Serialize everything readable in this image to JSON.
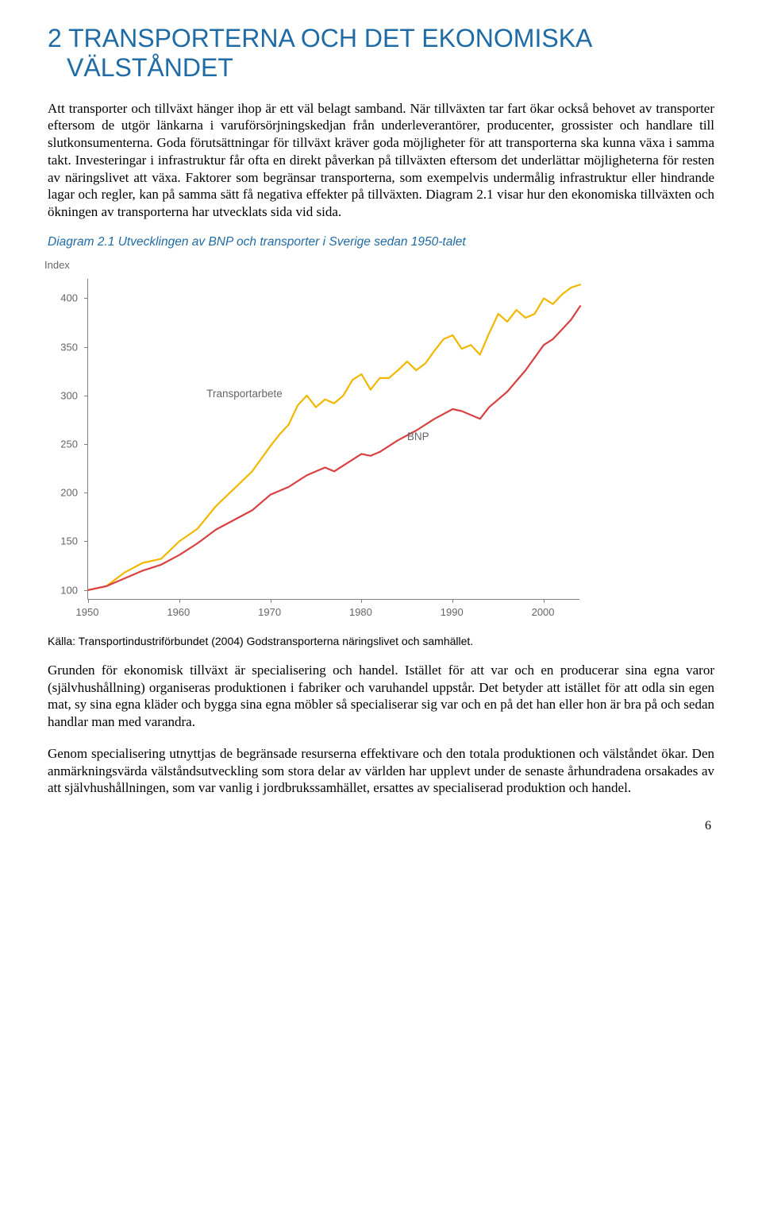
{
  "heading": "2 TRANSPORTERNA OCH DET EKONOMISKA VÄLSTÅNDET",
  "para1": "Att transporter och tillväxt hänger ihop är ett väl belagt samband. När tillväxten tar fart ökar också behovet av transporter eftersom de utgör länkarna i varuförsörjningskedjan från underleverantörer, producenter, grossister och handlare till slutkonsumenterna. Goda förutsättningar för tillväxt kräver goda möjligheter för att transporterna ska kunna växa i samma takt. Investeringar i infrastruktur får ofta en direkt påverkan på tillväxten eftersom det underlättar möjligheterna för resten av näringslivet att växa. Faktorer som begränsar transporterna, som exempelvis undermålig infrastruktur eller hindrande lagar och regler, kan på samma sätt få negativa effekter på tillväxten. Diagram 2.1 visar hur den ekonomiska tillväxten och ökningen av transporterna har utvecklats sida vid sida.",
  "caption": "Diagram 2.1 Utvecklingen av BNP och transporter i Sverige sedan 1950-talet",
  "source": "Källa: Transportindustriförbundet (2004) Godstransporterna näringslivet och samhället.",
  "para2": "Grunden för ekonomisk tillväxt är specialisering och handel. Istället för att var och en producerar sina egna varor (självhushållning) organiseras produktionen i fabriker och varuhandel uppstår. Det betyder att istället för att odla sin egen mat, sy sina egna kläder och bygga sina egna möbler så specialiserar sig var och en på det han eller hon är bra på och sedan handlar man med varandra.",
  "para3": "Genom specialisering utnyttjas de begränsade resurserna effektivare och den totala produktionen och välståndet ökar. Den anmärkningsvärda välståndsutveckling som stora delar av världen har upplevt under de senaste århundradena orsakades av att självhushållningen, som var vanlig i jordbrukssamhället, ersattes av specialiserad produktion och handel.",
  "page_number": "6",
  "chart": {
    "type": "line",
    "y_axis_label": "Index",
    "axis_color": "#808080",
    "tick_font_color": "#666666",
    "tick_fontsize": 13,
    "background_color": "#ffffff",
    "xlim": [
      1950,
      2004
    ],
    "ylim": [
      90,
      420
    ],
    "yticks": [
      100,
      150,
      200,
      250,
      300,
      350,
      400
    ],
    "xticks": [
      1950,
      1960,
      1970,
      1980,
      1990,
      2000
    ],
    "series": [
      {
        "name": "Transportarbete",
        "label_text": "Transportarbete",
        "color": "#f2b700",
        "line_width": 2.2,
        "label_pos": {
          "x": 1963,
          "y": 308
        },
        "data": [
          {
            "x": 1950,
            "y": 100
          },
          {
            "x": 1952,
            "y": 104
          },
          {
            "x": 1954,
            "y": 118
          },
          {
            "x": 1956,
            "y": 128
          },
          {
            "x": 1958,
            "y": 132
          },
          {
            "x": 1960,
            "y": 150
          },
          {
            "x": 1962,
            "y": 163
          },
          {
            "x": 1964,
            "y": 186
          },
          {
            "x": 1966,
            "y": 204
          },
          {
            "x": 1968,
            "y": 222
          },
          {
            "x": 1970,
            "y": 248
          },
          {
            "x": 1971,
            "y": 260
          },
          {
            "x": 1972,
            "y": 270
          },
          {
            "x": 1973,
            "y": 290
          },
          {
            "x": 1974,
            "y": 300
          },
          {
            "x": 1975,
            "y": 288
          },
          {
            "x": 1976,
            "y": 296
          },
          {
            "x": 1977,
            "y": 292
          },
          {
            "x": 1978,
            "y": 300
          },
          {
            "x": 1979,
            "y": 316
          },
          {
            "x": 1980,
            "y": 322
          },
          {
            "x": 1981,
            "y": 306
          },
          {
            "x": 1982,
            "y": 318
          },
          {
            "x": 1983,
            "y": 318
          },
          {
            "x": 1984,
            "y": 326
          },
          {
            "x": 1985,
            "y": 335
          },
          {
            "x": 1986,
            "y": 326
          },
          {
            "x": 1987,
            "y": 333
          },
          {
            "x": 1988,
            "y": 346
          },
          {
            "x": 1989,
            "y": 358
          },
          {
            "x": 1990,
            "y": 362
          },
          {
            "x": 1991,
            "y": 348
          },
          {
            "x": 1992,
            "y": 352
          },
          {
            "x": 1993,
            "y": 342
          },
          {
            "x": 1994,
            "y": 364
          },
          {
            "x": 1995,
            "y": 384
          },
          {
            "x": 1996,
            "y": 376
          },
          {
            "x": 1997,
            "y": 388
          },
          {
            "x": 1998,
            "y": 380
          },
          {
            "x": 1999,
            "y": 384
          },
          {
            "x": 2000,
            "y": 400
          },
          {
            "x": 2001,
            "y": 394
          },
          {
            "x": 2002,
            "y": 404
          },
          {
            "x": 2003,
            "y": 411
          },
          {
            "x": 2004,
            "y": 414
          }
        ]
      },
      {
        "name": "BNP",
        "label_text": "BNP",
        "color": "#d94141",
        "line_width": 2.2,
        "label_pos": {
          "x": 1985,
          "y": 264
        },
        "data": [
          {
            "x": 1950,
            "y": 100
          },
          {
            "x": 1952,
            "y": 104
          },
          {
            "x": 1954,
            "y": 112
          },
          {
            "x": 1956,
            "y": 120
          },
          {
            "x": 1958,
            "y": 126
          },
          {
            "x": 1960,
            "y": 136
          },
          {
            "x": 1962,
            "y": 148
          },
          {
            "x": 1964,
            "y": 162
          },
          {
            "x": 1966,
            "y": 172
          },
          {
            "x": 1968,
            "y": 182
          },
          {
            "x": 1970,
            "y": 198
          },
          {
            "x": 1972,
            "y": 206
          },
          {
            "x": 1974,
            "y": 218
          },
          {
            "x": 1975,
            "y": 222
          },
          {
            "x": 1976,
            "y": 226
          },
          {
            "x": 1977,
            "y": 222
          },
          {
            "x": 1978,
            "y": 228
          },
          {
            "x": 1980,
            "y": 240
          },
          {
            "x": 1981,
            "y": 238
          },
          {
            "x": 1982,
            "y": 242
          },
          {
            "x": 1984,
            "y": 254
          },
          {
            "x": 1986,
            "y": 264
          },
          {
            "x": 1988,
            "y": 276
          },
          {
            "x": 1990,
            "y": 286
          },
          {
            "x": 1991,
            "y": 284
          },
          {
            "x": 1992,
            "y": 280
          },
          {
            "x": 1993,
            "y": 276
          },
          {
            "x": 1994,
            "y": 288
          },
          {
            "x": 1996,
            "y": 304
          },
          {
            "x": 1998,
            "y": 326
          },
          {
            "x": 2000,
            "y": 352
          },
          {
            "x": 2001,
            "y": 358
          },
          {
            "x": 2002,
            "y": 368
          },
          {
            "x": 2003,
            "y": 378
          },
          {
            "x": 2004,
            "y": 392
          }
        ]
      }
    ]
  }
}
